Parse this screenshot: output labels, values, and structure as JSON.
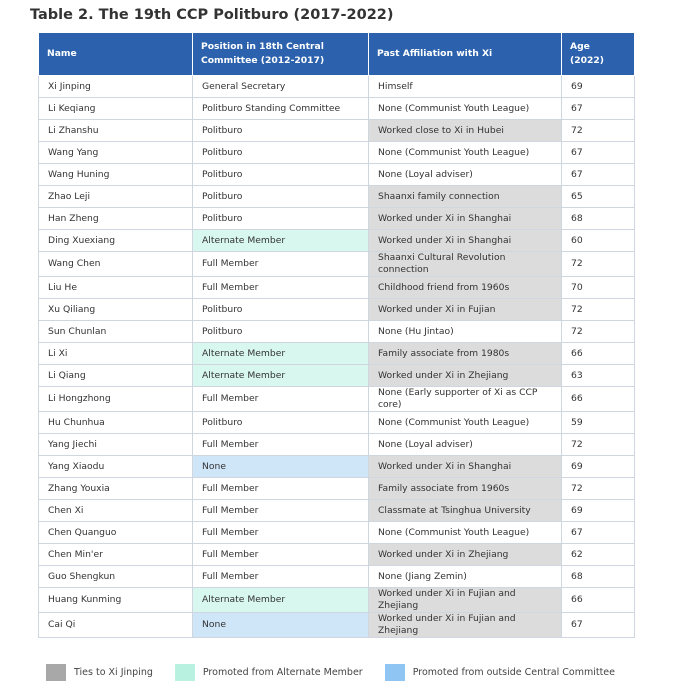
{
  "title": "Table 2. The 19th CCP Politburo (2017-2022)",
  "table": {
    "header": [
      "Name",
      "Position in 18th Central Committee (2012-2017)",
      "Past Affiliation with Xi",
      "Age (2022)"
    ],
    "rows": [
      [
        "Xi Jinping",
        "General Secretary",
        "Himself",
        69
      ],
      [
        "Li Keqiang",
        "Politburo Standing Committee",
        "None (Communist Youth League)",
        67
      ],
      [
        "Li Zhanshu",
        "Politburo",
        "Worked close to Xi in Hubei",
        72
      ],
      [
        "Wang Yang",
        "Politburo",
        "None (Communist Youth League)",
        67
      ],
      [
        "Wang Huning",
        "Politburo",
        "None (Loyal adviser)",
        67
      ],
      [
        "Zhao Leji",
        "Politburo",
        "Shaanxi family connection",
        65
      ],
      [
        "Han Zheng",
        "Politburo",
        "Worked under Xi in Shanghai",
        68
      ],
      [
        "Ding Xuexiang",
        "Alternate Member",
        "Worked under Xi in Shanghai",
        60
      ],
      [
        "Wang Chen",
        "Full Member",
        "Shaanxi Cultural Revolution connection",
        72
      ],
      [
        "Liu He",
        "Full Member",
        "Childhood friend from 1960s",
        70
      ],
      [
        "Xu Qiliang",
        "Politburo",
        "Worked under Xi in Fujian",
        72
      ],
      [
        "Sun Chunlan",
        "Politburo",
        "None (Hu Jintao)",
        72
      ],
      [
        "Li Xi",
        "Alternate Member",
        "Family associate from 1980s",
        66
      ],
      [
        "Li Qiang",
        "Alternate Member",
        "Worked under Xi in Zhejiang",
        63
      ],
      [
        "Li Hongzhong",
        "Full Member",
        "None (Early supporter of Xi as CCP core)",
        66
      ],
      [
        "Hu Chunhua",
        "Politburo",
        "None (Communist Youth League)",
        59
      ],
      [
        "Yang Jiechi",
        "Full Member",
        "None (Loyal adviser)",
        72
      ],
      [
        "Yang Xiaodu",
        "None",
        "Worked under Xi in Shanghai",
        69
      ],
      [
        "Zhang Youxia",
        "Full Member",
        "Family associate from 1960s",
        72
      ],
      [
        "Chen Xi",
        "Full Member",
        "Classmate at Tsinghua University",
        69
      ],
      [
        "Chen Quanguo",
        "Full Member",
        "None (Communist Youth League)",
        67
      ],
      [
        "Chen Min'er",
        "Full Member",
        "Worked under Xi in Zhejiang",
        62
      ],
      [
        "Guo Shengkun",
        "Full Member",
        "None (Jiang Zemin)",
        68
      ],
      [
        "Huang Kunming",
        "Alternate Member",
        "Worked under Xi in Fujian and Zhejiang",
        66
      ],
      [
        "Cai Qi",
        "None",
        "Worked under Xi in Fujian and Zhejiang",
        67
      ]
    ]
  },
  "legend": [
    "Ties to Xi Jinping",
    "Promoted from Alternate Member",
    "Promoted from outside Central Committee"
  ]
}
